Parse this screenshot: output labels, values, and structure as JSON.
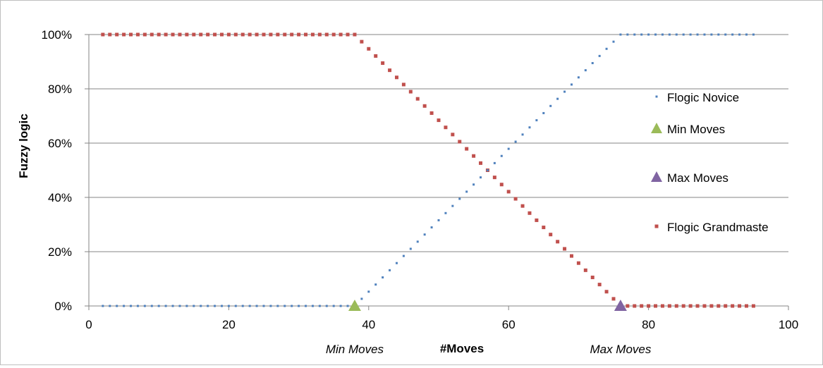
{
  "chart_data": {
    "type": "scatter",
    "title": "",
    "xlabel": "#Moves",
    "ylabel": "Fuzzy logic",
    "xlim": [
      0,
      100
    ],
    "ylim": [
      0,
      1
    ],
    "x_ticks": [
      0,
      20,
      40,
      60,
      80,
      100
    ],
    "y_ticks": [
      0,
      0.2,
      0.4,
      0.6,
      0.8,
      1.0
    ],
    "x_tick_labels": [
      "0",
      "20",
      "40",
      "60",
      "80",
      "100"
    ],
    "y_tick_labels": [
      "0%",
      "20%",
      "40%",
      "60%",
      "80%",
      "100%"
    ],
    "grid": "horizontal",
    "legend_position": "right",
    "annotations": [
      {
        "text": "Min Moves",
        "x": 38
      },
      {
        "text": "Max Moves",
        "x": 76
      }
    ],
    "series": [
      {
        "name": "Flogic Novice",
        "marker": "dot",
        "color": "#4f81bd",
        "x_start": 2,
        "x_end": 95,
        "x_step": 1,
        "min_moves": 38,
        "max_moves": 76,
        "trend": "increasing"
      },
      {
        "name": "Min Moves",
        "marker": "triangle",
        "color": "#9bbb59",
        "points": [
          {
            "x": 38,
            "y": 0
          }
        ]
      },
      {
        "name": "Max Moves",
        "marker": "triangle",
        "color": "#8064a2",
        "points": [
          {
            "x": 76,
            "y": 0
          }
        ]
      },
      {
        "name": "Flogic Grandmaste",
        "marker": "square",
        "color": "#c0504d",
        "x_start": 2,
        "x_end": 95,
        "x_step": 1,
        "min_moves": 38,
        "max_moves": 76,
        "trend": "decreasing"
      }
    ]
  }
}
